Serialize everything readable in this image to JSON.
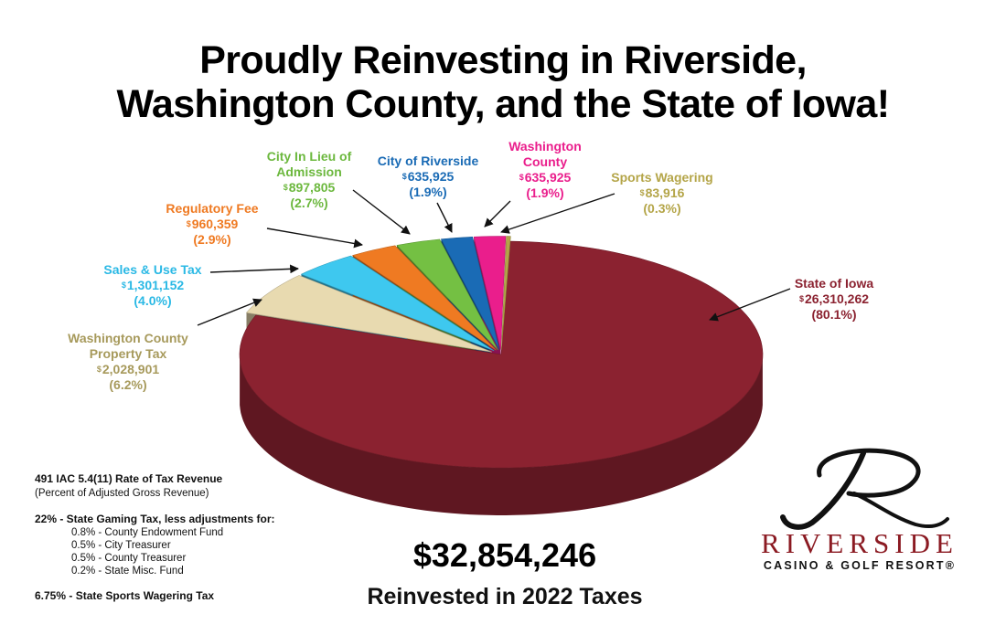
{
  "title_line1": "Proudly Reinvesting in Riverside,",
  "title_line2": "Washington County, and the State of Iowa!",
  "chart_data": {
    "type": "pie",
    "title": "Proudly Reinvesting in Riverside, Washington County, and the State of Iowa!",
    "slices": [
      {
        "label": "State of Iowa",
        "value": 26310262,
        "value_text": "26,310,262",
        "percent": 80.1,
        "percent_text": "(80.1%)",
        "color": "#8b2230"
      },
      {
        "label": "Washington County Property Tax",
        "value": 2028901,
        "value_text": "2,028,901",
        "percent": 6.2,
        "percent_text": "(6.2%)",
        "color": "#e8dab0"
      },
      {
        "label": "Sales & Use Tax",
        "value": 1301152,
        "value_text": "1,301,152",
        "percent": 4.0,
        "percent_text": "(4.0%)",
        "color": "#3ec8ef"
      },
      {
        "label": "Regulatory Fee",
        "value": 960359,
        "value_text": "960,359",
        "percent": 2.9,
        "percent_text": "(2.9%)",
        "color": "#ef7a22"
      },
      {
        "label": "City In Lieu of Admission",
        "value": 897805,
        "value_text": "897,805",
        "percent": 2.7,
        "percent_text": "(2.7%)",
        "color": "#74c043"
      },
      {
        "label": "City of Riverside",
        "value": 635925,
        "value_text": "635,925",
        "percent": 1.9,
        "percent_text": "(1.9%)",
        "color": "#1a6bb5"
      },
      {
        "label": "Washington County",
        "value": 635925,
        "value_text": "635,925",
        "percent": 1.9,
        "percent_text": "(1.9%)",
        "color": "#ea1e8c"
      },
      {
        "label": "Sports Wagering",
        "value": 83916,
        "value_text": "83,916",
        "percent": 0.3,
        "percent_text": "(0.3%)",
        "color": "#b4a548"
      }
    ],
    "currency_symbol": "$"
  },
  "labels": {
    "state": {
      "name": "State of Iowa",
      "value": "26,310,262",
      "pct": "(80.1%)"
    },
    "wcpt": {
      "name1": "Washington County",
      "name2": "Property Tax",
      "value": "2,028,901",
      "pct": "(6.2%)"
    },
    "sales": {
      "name": "Sales & Use Tax",
      "value": "1,301,152",
      "pct": "(4.0%)"
    },
    "reg": {
      "name": "Regulatory Fee",
      "value": "960,359",
      "pct": "(2.9%)"
    },
    "city_lieu": {
      "name1": "City In Lieu of",
      "name2": "Admission",
      "value": "897,805",
      "pct": "(2.7%)"
    },
    "city_riv": {
      "name": "City of Riverside",
      "value": "635,925",
      "pct": "(1.9%)"
    },
    "wc": {
      "name1": "Washington",
      "name2": "County",
      "value": "635,925",
      "pct": "(1.9%)"
    },
    "sports": {
      "name": "Sports Wagering",
      "value": "83,916",
      "pct": "(0.3%)"
    },
    "dollar": "$"
  },
  "notes": {
    "heading": "491 IAC 5.4(11) Rate of Tax Revenue",
    "subheading": "(Percent of Adjusted Gross Revenue)",
    "gaming": "22% - State Gaming Tax, less adjustments for:",
    "adjustments": [
      "0.8% - County Endowment Fund",
      "0.5% - City Treasurer",
      "0.5% - County Treasurer",
      "0.2% - State Misc. Fund"
    ],
    "sports": "6.75% - State Sports Wagering Tax"
  },
  "total": "$32,854,246",
  "total_caption": "Reinvested in 2022 Taxes",
  "logo": {
    "name": "RIVERSIDE",
    "tagline": "CASINO & GOLF RESORT®"
  }
}
